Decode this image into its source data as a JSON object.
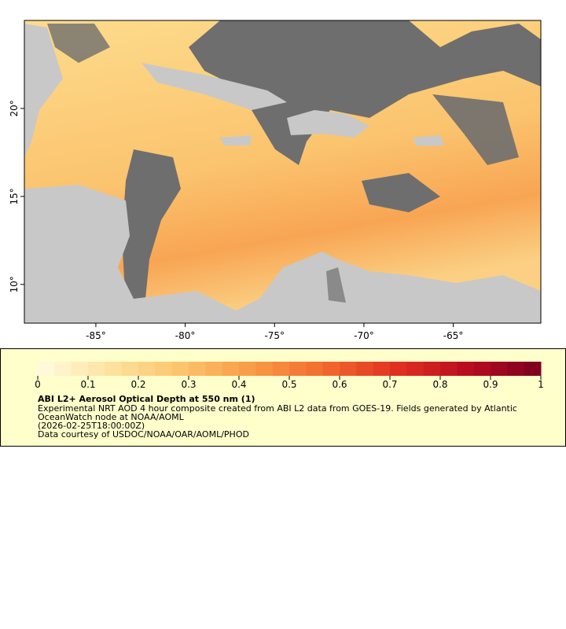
{
  "map": {
    "x_axis": {
      "lim": [
        -89,
        -60.1
      ],
      "ticks": [
        {
          "value": -85,
          "label": "-85°"
        },
        {
          "value": -80,
          "label": "-80°"
        },
        {
          "value": -75,
          "label": "-75°"
        },
        {
          "value": -70,
          "label": "-70°"
        },
        {
          "value": -65,
          "label": "-65°"
        }
      ]
    },
    "y_axis": {
      "lim": [
        7.8,
        25
      ],
      "ticks": [
        {
          "value": 10,
          "label": "10°"
        },
        {
          "value": 15,
          "label": "15°"
        },
        {
          "value": 20,
          "label": "20°"
        }
      ]
    },
    "colorbar": {
      "lim": [
        0,
        1
      ],
      "ticks": [
        0,
        0.1,
        0.2,
        0.3,
        0.4,
        0.5,
        0.6,
        0.7,
        0.8,
        0.9,
        1
      ],
      "colors": [
        "#fffbe0",
        "#fde3a0",
        "#fbc46c",
        "#f99a45",
        "#f26a2e",
        "#e03020",
        "#b80c20",
        "#7a0020"
      ]
    },
    "legend": {
      "title": "ABI L2+ Aerosol Optical Depth at 550 nm (1)",
      "lines": [
        "Experimental NRT AOD 4 hour composite created from ABI L2 data from GOES-19. Fields generated by Atlantic",
        "OceanWatch node at NOAA/AOML",
        "(2026-02-25T18:00:00Z)",
        "Data courtesy of USDOC/NOAA/OAR/AOML/PHOD"
      ]
    }
  }
}
